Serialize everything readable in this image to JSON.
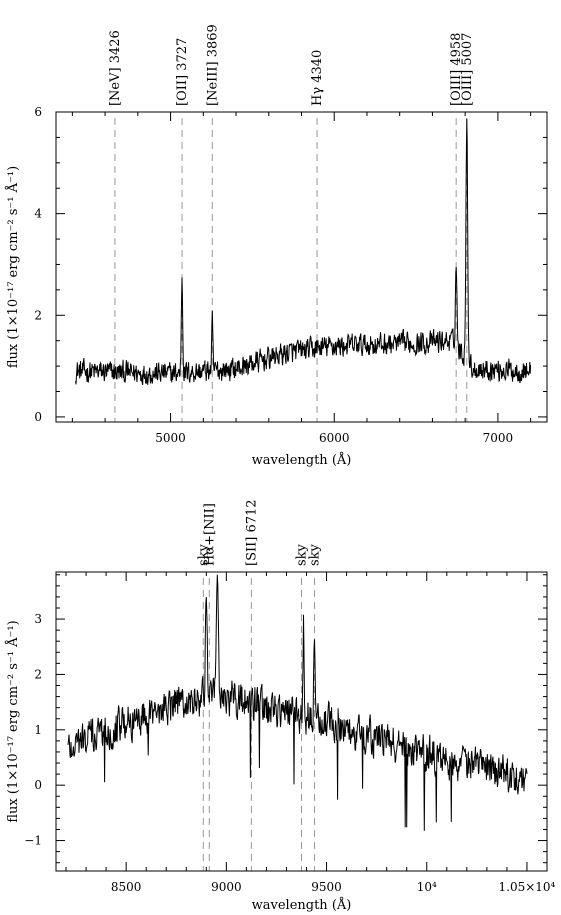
{
  "chart_data": [
    {
      "type": "line",
      "xlabel": "wavelength (Å)",
      "ylabel": "flux (1×10⁻¹⁷ erg cm⁻² s⁻¹ Å⁻¹)",
      "xlim": [
        4300,
        7300
      ],
      "ylim": [
        -0.1,
        6.0
      ],
      "xticks": [
        5000,
        6000,
        7000
      ],
      "xtick_labels": [
        "5000",
        "6000",
        "7000"
      ],
      "yticks": [
        0,
        2,
        4,
        6
      ],
      "ytick_labels": [
        "0",
        "2",
        "4",
        "6"
      ],
      "grid": false,
      "line_color": "#000000",
      "marker_color": "#999999",
      "emission_lines": [
        {
          "label": "[NeV] 3426",
          "x": 4660
        },
        {
          "label": "[OII] 3727",
          "x": 5070
        },
        {
          "label": "[NeIII] 3869",
          "x": 5255
        },
        {
          "label": "Hγ 4340",
          "x": 5895
        },
        {
          "label": "[OIII] 4958",
          "x": 6745
        },
        {
          "label": "[OIII] 5007",
          "x": 6810
        }
      ],
      "spectrum": {
        "x_range": [
          4420,
          7200
        ],
        "continuum": [
          [
            4420,
            0.9
          ],
          [
            5000,
            0.85
          ],
          [
            5400,
            0.95
          ],
          [
            5700,
            1.25
          ],
          [
            6000,
            1.4
          ],
          [
            6500,
            1.45
          ],
          [
            6720,
            1.5
          ],
          [
            6850,
            0.95
          ],
          [
            7200,
            0.9
          ]
        ],
        "noise": 0.2,
        "peaks": [
          {
            "x": 5070,
            "height": 2.78,
            "width": 6
          },
          {
            "x": 5255,
            "height": 1.85,
            "width": 5
          },
          {
            "x": 6745,
            "height": 2.95,
            "width": 7
          },
          {
            "x": 6810,
            "height": 5.7,
            "width": 8
          }
        ]
      }
    },
    {
      "type": "line",
      "xlabel": "wavelength (Å)",
      "ylabel": "flux (1×10⁻¹⁷ erg cm⁻² s⁻¹ Å⁻¹)",
      "xlim": [
        8150,
        10600
      ],
      "ylim": [
        -1.55,
        3.85
      ],
      "xticks": [
        8500,
        9000,
        9500,
        10000,
        10500
      ],
      "xtick_labels": [
        "8500",
        "9000",
        "9500",
        "10⁴",
        "1.05×10⁴"
      ],
      "yticks": [
        -1,
        0,
        1,
        2,
        3
      ],
      "ytick_labels": [
        "−1",
        "0",
        "1",
        "2",
        "3"
      ],
      "grid": false,
      "line_color": "#000000",
      "marker_color": "#999999",
      "emission_lines": [
        {
          "label": "sky",
          "x": 8885
        },
        {
          "label": "Hα+[NII]",
          "x": 8915
        },
        {
          "label": "[SII] 6712",
          "x": 9125
        },
        {
          "label": "sky",
          "x": 9375
        },
        {
          "label": "sky",
          "x": 9440
        }
      ],
      "spectrum": {
        "x_range": [
          8210,
          10500
        ],
        "continuum": [
          [
            8210,
            0.7
          ],
          [
            8400,
            1.0
          ],
          [
            8700,
            1.4
          ],
          [
            8880,
            1.55
          ],
          [
            9000,
            1.6
          ],
          [
            9200,
            1.4
          ],
          [
            9500,
            1.15
          ],
          [
            9800,
            0.8
          ],
          [
            10100,
            0.45
          ],
          [
            10500,
            0.15
          ]
        ],
        "noise": 0.3,
        "peaks": [
          {
            "x": 8900,
            "height": 3.7,
            "width": 6
          },
          {
            "x": 8955,
            "height": 3.6,
            "width": 7
          },
          {
            "x": 9385,
            "height": 2.9,
            "width": 5
          },
          {
            "x": 9440,
            "height": 2.8,
            "width": 5
          }
        ]
      }
    }
  ]
}
